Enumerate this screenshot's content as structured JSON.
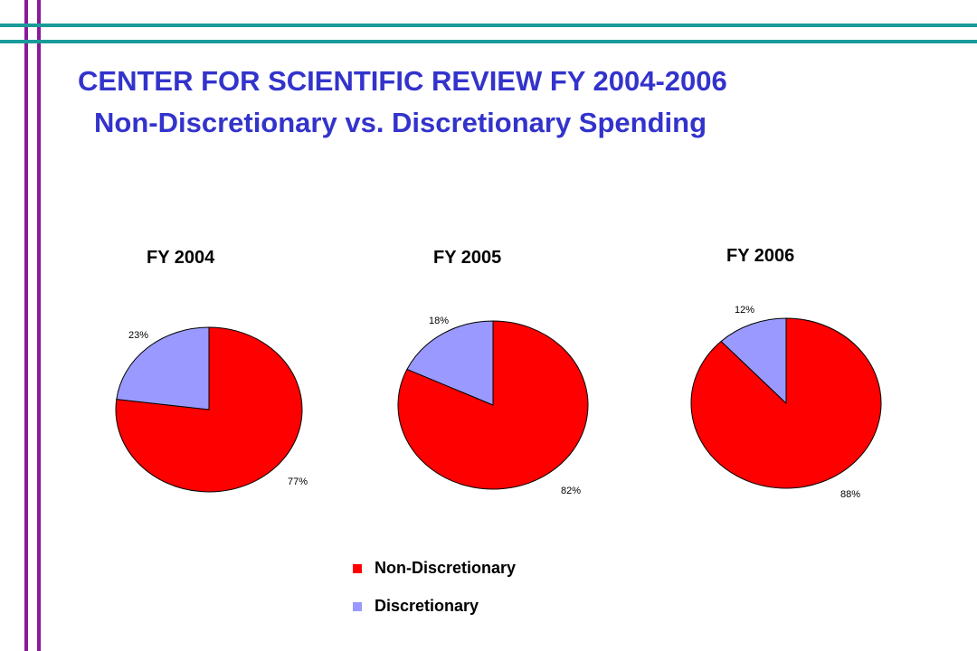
{
  "colors": {
    "border_purple": "#8a1a9a",
    "border_teal": "#1a9a9a",
    "title": "#3333cc",
    "non_discretionary": "#ff0000",
    "discretionary": "#9999ff"
  },
  "header": {
    "title_line1": "CENTER FOR SCIENTIFIC REVIEW  FY 2004-2006",
    "title_line2": "Non-Discretionary vs. Discretionary Spending"
  },
  "chart_data": [
    {
      "type": "pie",
      "title": "FY 2004",
      "series": [
        {
          "name": "Non-Discretionary",
          "value": 77,
          "label": "77%"
        },
        {
          "name": "Discretionary",
          "value": 23,
          "label": "23%"
        }
      ]
    },
    {
      "type": "pie",
      "title": "FY 2005",
      "series": [
        {
          "name": "Non-Discretionary",
          "value": 82,
          "label": "82%"
        },
        {
          "name": "Discretionary",
          "value": 18,
          "label": "18%"
        }
      ]
    },
    {
      "type": "pie",
      "title": "FY 2006",
      "series": [
        {
          "name": "Non-Discretionary",
          "value": 88,
          "label": "88%"
        },
        {
          "name": "Discretionary",
          "value": 12,
          "label": "12%"
        }
      ]
    }
  ],
  "legend": {
    "placement": "bottom-center",
    "items": [
      {
        "label": "Non-Discretionary",
        "color": "#ff0000"
      },
      {
        "label": "Discretionary",
        "color": "#9999ff"
      }
    ]
  }
}
